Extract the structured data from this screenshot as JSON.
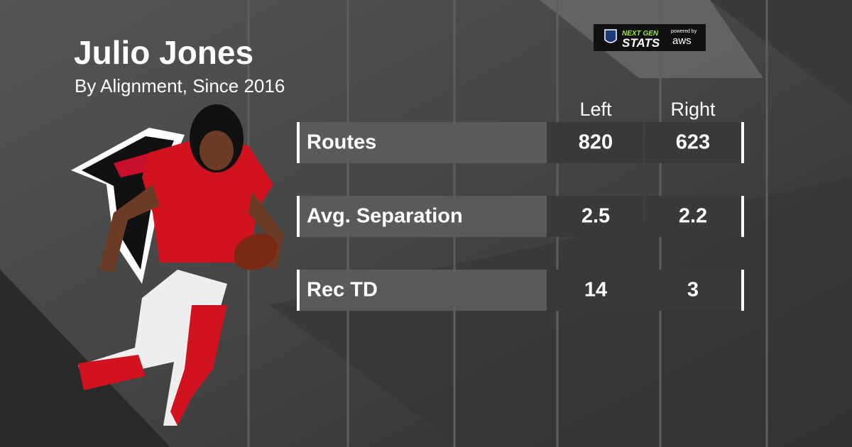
{
  "header": {
    "title": "Julio Jones",
    "subtitle": "By Alignment, Since 2016"
  },
  "logo": {
    "brand_top": "NEXT GEN",
    "brand_bottom": "STATS",
    "powered": "powered by",
    "sponsor": "aws"
  },
  "table": {
    "columns": [
      "Left",
      "Right"
    ],
    "rows": [
      [
        "Routes",
        820,
        623
      ],
      [
        "Avg. Separation",
        2.5,
        2.2
      ],
      [
        "Rec TD",
        14,
        3
      ]
    ]
  }
}
